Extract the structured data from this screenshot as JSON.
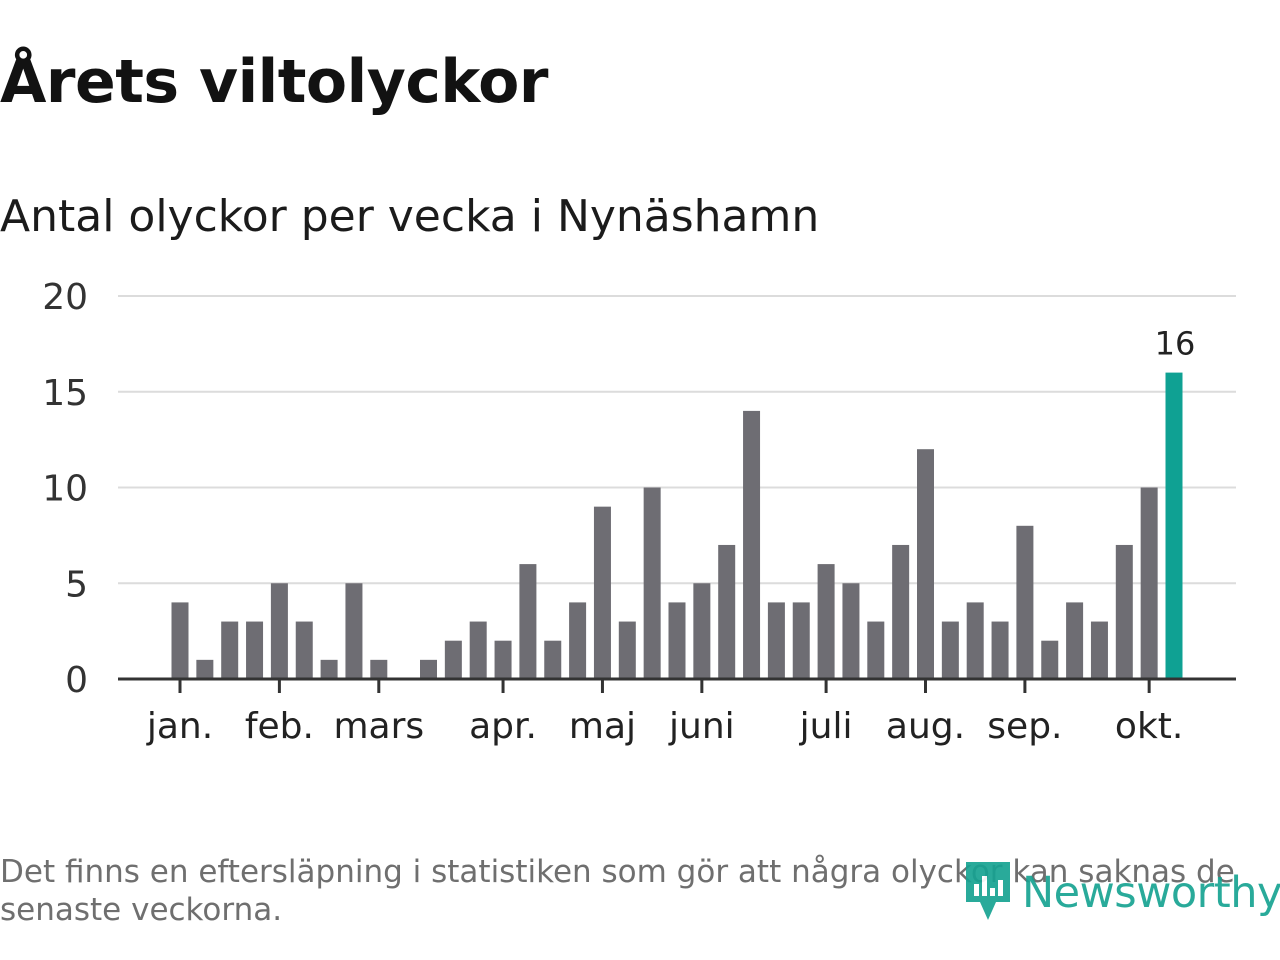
{
  "title": "Årets viltolyckor",
  "subtitle": "Antal olyckor per vecka i Nynäshamn",
  "footnote": "Det finns en eftersläpning i statistiken som gör att några olyckor kan saknas de senaste veckorna.",
  "brand": {
    "name": "Newsworthy",
    "icon": "bar-chart-pin-icon",
    "color": "#17a392"
  },
  "chart_data": {
    "type": "bar",
    "title": "Årets viltolyckor",
    "subtitle": "Antal olyckor per vecka i Nynäshamn",
    "xlabel": "",
    "ylabel": "",
    "ylim": [
      0,
      20
    ],
    "yticks": [
      "0",
      "5",
      "10",
      "15",
      "20"
    ],
    "grid": true,
    "legend": "none",
    "x_axis": "week",
    "month_ticks": [
      {
        "label": "jan.",
        "week_index": 0
      },
      {
        "label": "feb.",
        "week_index": 4
      },
      {
        "label": "mars",
        "week_index": 8
      },
      {
        "label": "apr.",
        "week_index": 13
      },
      {
        "label": "maj",
        "week_index": 17
      },
      {
        "label": "juni",
        "week_index": 21
      },
      {
        "label": "juli",
        "week_index": 26
      },
      {
        "label": "aug.",
        "week_index": 30
      },
      {
        "label": "sep.",
        "week_index": 34
      },
      {
        "label": "okt.",
        "week_index": 39
      }
    ],
    "values": [
      4,
      1,
      3,
      3,
      5,
      3,
      1,
      5,
      1,
      0,
      1,
      2,
      3,
      2,
      6,
      2,
      4,
      9,
      3,
      10,
      4,
      5,
      7,
      14,
      4,
      4,
      6,
      5,
      3,
      7,
      12,
      3,
      4,
      3,
      8,
      2,
      4,
      3,
      7,
      10,
      16
    ],
    "bar_color": "#6e6d73",
    "highlight_color": "#0fa193",
    "highlight_index": 40,
    "highlight_label": "16",
    "grid_color": "#dcdcdc",
    "axis_color": "#333333"
  }
}
